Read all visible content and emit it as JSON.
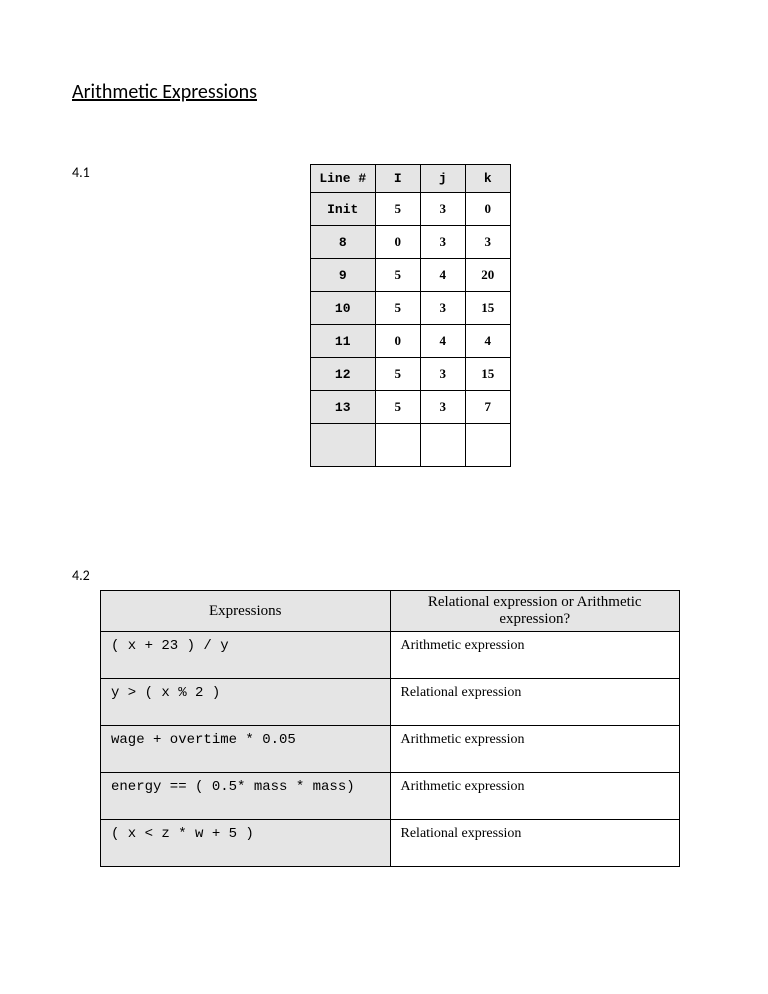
{
  "title": "Arithmetic Expressions",
  "section41": {
    "label": "4.1",
    "headers": [
      "Line #",
      "I",
      "j",
      "k"
    ],
    "rows": [
      {
        "line": "Init",
        "i": "5",
        "j": "3",
        "k": "0"
      },
      {
        "line": "8",
        "i": "0",
        "j": "3",
        "k": "3"
      },
      {
        "line": "9",
        "i": "5",
        "j": "4",
        "k": "20"
      },
      {
        "line": "10",
        "i": "5",
        "j": "3",
        "k": "15"
      },
      {
        "line": "11",
        "i": "0",
        "j": "4",
        "k": "4"
      },
      {
        "line": "12",
        "i": "5",
        "j": "3",
        "k": "15"
      },
      {
        "line": "13",
        "i": "5",
        "j": "3",
        "k": "7"
      }
    ]
  },
  "section42": {
    "label": "4.2",
    "headers": [
      "Expressions",
      "Relational expression or Arithmetic expression?"
    ],
    "rows": [
      {
        "expr": "( x + 23 ) / y",
        "ans": "Arithmetic expression"
      },
      {
        "expr": "y > ( x % 2 )",
        "ans": "Relational expression"
      },
      {
        "expr": "wage + overtime * 0.05",
        "ans": "Arithmetic expression"
      },
      {
        "expr": "energy == ( 0.5* mass * mass)",
        "ans": "Arithmetic expression"
      },
      {
        "expr": "( x < z * w + 5 )",
        "ans": "Relational expression"
      }
    ]
  },
  "colors": {
    "header_bg": "#e5e5e5",
    "border": "#000000",
    "page_bg": "#ffffff",
    "text": "#000000"
  }
}
